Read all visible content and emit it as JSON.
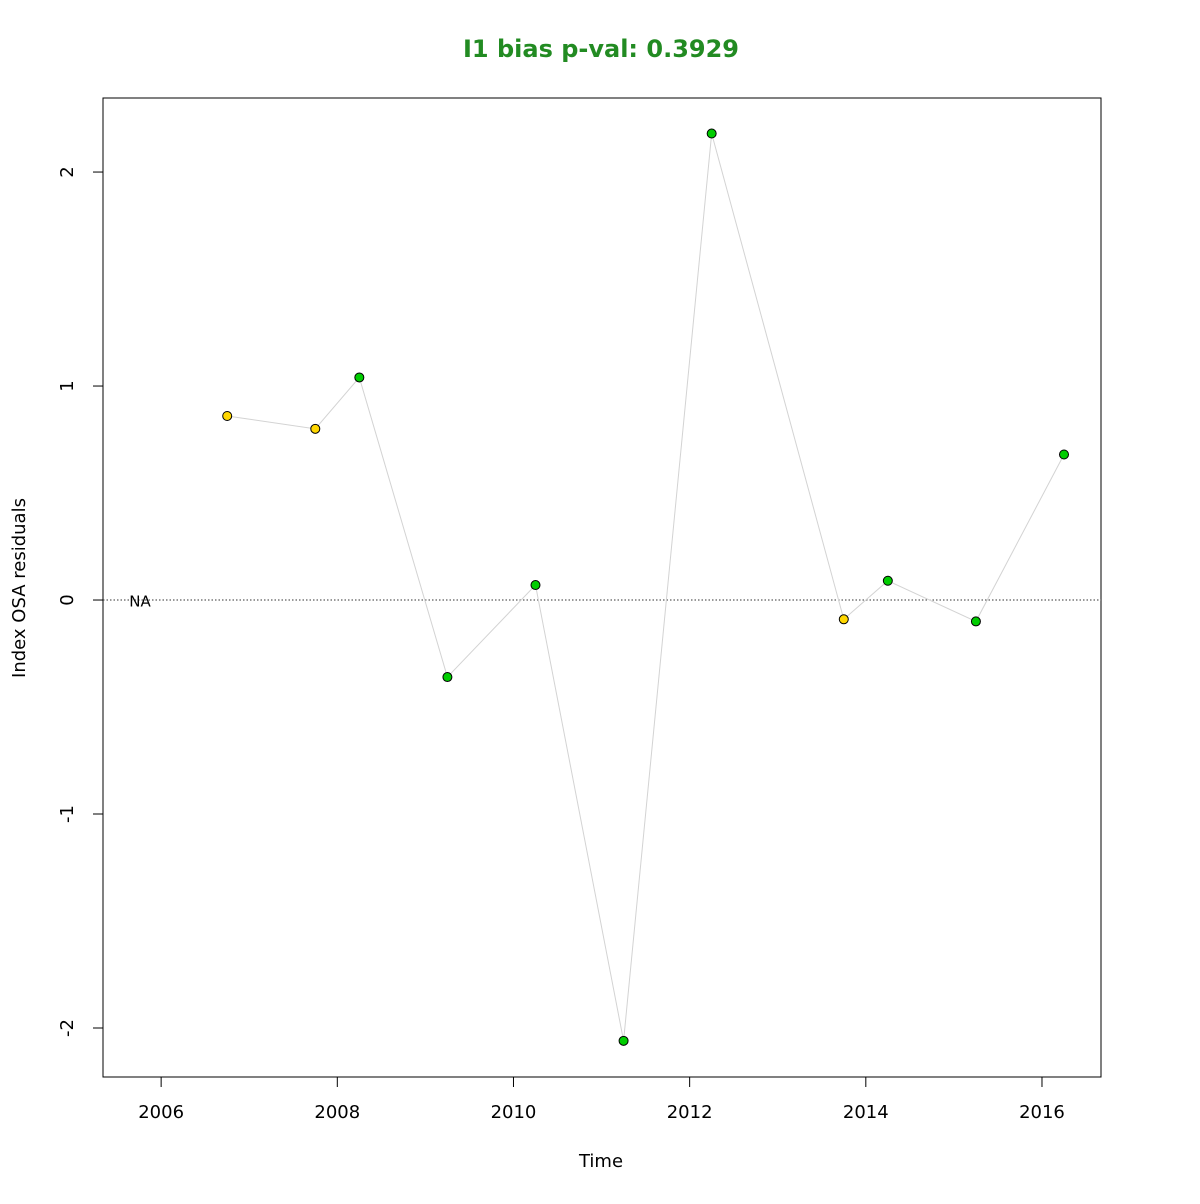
{
  "chart_data": {
    "type": "scatter",
    "title": "I1 bias p-val: 0.3929",
    "title_color": "#228b22",
    "xlabel": "Time",
    "ylabel": "Index OSA residuals",
    "x": [
      2006.75,
      2007.75,
      2008.25,
      2009.25,
      2010.25,
      2011.25,
      2012.25,
      2013.75,
      2014.25,
      2015.25,
      2016.25
    ],
    "values": [
      0.86,
      0.8,
      1.04,
      -0.36,
      0.07,
      -2.06,
      2.18,
      -0.09,
      0.09,
      -0.1,
      0.68
    ],
    "point_colors": [
      "#ffd700",
      "#ffd700",
      "#00cd00",
      "#00cd00",
      "#00cd00",
      "#00cd00",
      "#00cd00",
      "#ffd700",
      "#00cd00",
      "#00cd00",
      "#00cd00"
    ],
    "line_color": "#d3d3d3",
    "hline": 0,
    "annotation": "NA",
    "xlim": [
      2005.34,
      2016.67
    ],
    "xticks": [
      2006,
      2008,
      2010,
      2012,
      2014,
      2016
    ],
    "ylim": [
      -2.229,
      2.346
    ],
    "yticks": [
      -2,
      -1,
      0,
      1,
      2
    ]
  }
}
